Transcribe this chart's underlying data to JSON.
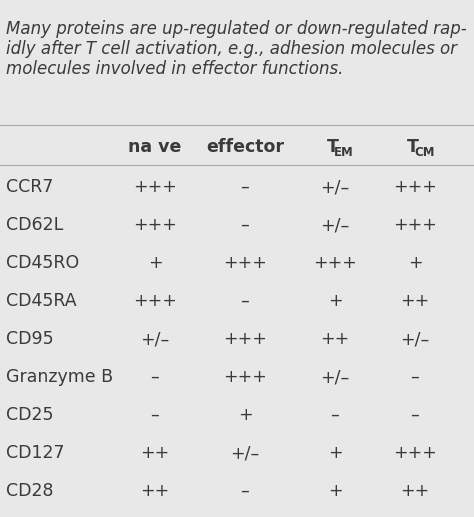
{
  "caption_lines": [
    "Many proteins are up-regulated or down-regulated rap-",
    "idly after T cell activation, e.g., adhesion molecules or",
    "molecules involved in effector functions."
  ],
  "caption_fontsize": 12.0,
  "rows": [
    [
      "CCR7",
      "+++",
      "–",
      "+/–",
      "+++"
    ],
    [
      "CD62L",
      "+++",
      "–",
      "+/–",
      "+++"
    ],
    [
      "CD45RO",
      "+",
      "+++",
      "+++",
      "+"
    ],
    [
      "CD45RA",
      "+++",
      "–",
      "+",
      "++"
    ],
    [
      "CD95",
      "+/–",
      "+++",
      "++",
      "+/–"
    ],
    [
      "Granzyme B",
      "–",
      "+++",
      "+/–",
      "–"
    ],
    [
      "CD25",
      "–",
      "+",
      "–",
      "–"
    ],
    [
      "CD127",
      "++",
      "+/–",
      "+",
      "+++"
    ],
    [
      "CD28",
      "++",
      "–",
      "+",
      "++"
    ]
  ],
  "bg_color": "#e8e8e8",
  "text_color": "#3a3a3a",
  "header_fontsize": 12.5,
  "cell_fontsize": 12.5,
  "row_label_fontsize": 12.5
}
